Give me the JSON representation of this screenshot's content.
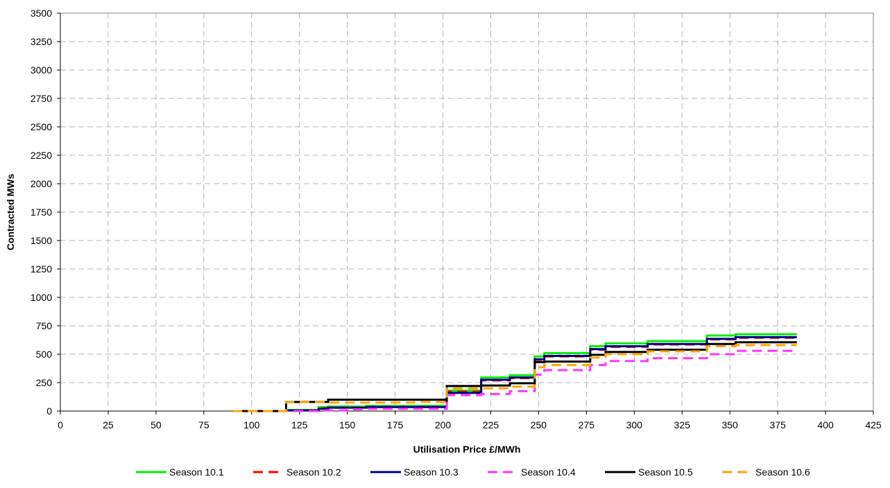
{
  "chart_data": {
    "type": "line",
    "title": "",
    "xlabel": "Utilisation Price £/MWh",
    "ylabel": "Contracted MWs",
    "xlim": [
      0,
      425
    ],
    "ylim": [
      0,
      3500
    ],
    "xticks": [
      0,
      25,
      50,
      75,
      100,
      125,
      150,
      175,
      200,
      225,
      250,
      275,
      300,
      325,
      350,
      375,
      400,
      425
    ],
    "yticks": [
      0,
      250,
      500,
      750,
      1000,
      1250,
      1500,
      1750,
      2000,
      2250,
      2500,
      2750,
      3000,
      3250,
      3500
    ],
    "grid": true,
    "legend_position": "bottom",
    "series": [
      {
        "name": "Season 10.1",
        "color": "#00ee00",
        "dash": "solid",
        "points": [
          [
            90,
            0
          ],
          [
            103,
            0
          ],
          [
            118,
            10
          ],
          [
            135,
            35
          ],
          [
            140,
            40
          ],
          [
            160,
            45
          ],
          [
            185,
            45
          ],
          [
            202,
            50
          ],
          [
            202,
            180
          ],
          [
            220,
            180
          ],
          [
            220,
            295
          ],
          [
            235,
            295
          ],
          [
            235,
            315
          ],
          [
            248,
            315
          ],
          [
            248,
            480
          ],
          [
            253,
            480
          ],
          [
            253,
            510
          ],
          [
            277,
            510
          ],
          [
            277,
            570
          ],
          [
            285,
            570
          ],
          [
            285,
            595
          ],
          [
            307,
            595
          ],
          [
            307,
            615
          ],
          [
            338,
            615
          ],
          [
            338,
            665
          ],
          [
            353,
            665
          ],
          [
            353,
            675
          ],
          [
            385,
            675
          ]
        ]
      },
      {
        "name": "Season 10.2",
        "color": "#ff0000",
        "dash": "dashed",
        "points": [
          [
            90,
            0
          ],
          [
            103,
            0
          ],
          [
            118,
            5
          ],
          [
            135,
            25
          ],
          [
            140,
            30
          ],
          [
            160,
            35
          ],
          [
            185,
            35
          ],
          [
            202,
            40
          ],
          [
            202,
            170
          ],
          [
            220,
            170
          ],
          [
            220,
            270
          ],
          [
            235,
            270
          ],
          [
            235,
            290
          ],
          [
            248,
            290
          ],
          [
            248,
            450
          ],
          [
            253,
            450
          ],
          [
            253,
            480
          ],
          [
            277,
            480
          ],
          [
            277,
            540
          ],
          [
            285,
            540
          ],
          [
            285,
            565
          ],
          [
            307,
            565
          ],
          [
            307,
            585
          ],
          [
            338,
            585
          ],
          [
            338,
            630
          ],
          [
            353,
            630
          ],
          [
            353,
            645
          ],
          [
            385,
            645
          ]
        ]
      },
      {
        "name": "Season 10.3",
        "color": "#000080",
        "dash": "solid",
        "points": [
          [
            90,
            0
          ],
          [
            103,
            0
          ],
          [
            118,
            5
          ],
          [
            135,
            20
          ],
          [
            140,
            30
          ],
          [
            160,
            35
          ],
          [
            185,
            35
          ],
          [
            202,
            40
          ],
          [
            202,
            160
          ],
          [
            220,
            160
          ],
          [
            220,
            275
          ],
          [
            235,
            275
          ],
          [
            235,
            295
          ],
          [
            248,
            295
          ],
          [
            248,
            455
          ],
          [
            253,
            455
          ],
          [
            253,
            485
          ],
          [
            277,
            485
          ],
          [
            277,
            545
          ],
          [
            285,
            545
          ],
          [
            285,
            570
          ],
          [
            307,
            570
          ],
          [
            307,
            590
          ],
          [
            338,
            590
          ],
          [
            338,
            635
          ],
          [
            353,
            635
          ],
          [
            353,
            650
          ],
          [
            385,
            650
          ]
        ]
      },
      {
        "name": "Season 10.4",
        "color": "#ff33ff",
        "dash": "dashed",
        "points": [
          [
            90,
            0
          ],
          [
            103,
            0
          ],
          [
            118,
            0
          ],
          [
            135,
            5
          ],
          [
            150,
            15
          ],
          [
            160,
            20
          ],
          [
            185,
            20
          ],
          [
            202,
            25
          ],
          [
            202,
            140
          ],
          [
            220,
            140
          ],
          [
            220,
            150
          ],
          [
            235,
            150
          ],
          [
            235,
            175
          ],
          [
            248,
            175
          ],
          [
            248,
            320
          ],
          [
            253,
            320
          ],
          [
            253,
            360
          ],
          [
            277,
            360
          ],
          [
            277,
            405
          ],
          [
            285,
            405
          ],
          [
            285,
            440
          ],
          [
            307,
            440
          ],
          [
            307,
            465
          ],
          [
            338,
            465
          ],
          [
            338,
            500
          ],
          [
            353,
            500
          ],
          [
            353,
            530
          ],
          [
            385,
            530
          ]
        ]
      },
      {
        "name": "Season 10.5",
        "color": "#000000",
        "dash": "solid",
        "points": [
          [
            90,
            0
          ],
          [
            103,
            0
          ],
          [
            118,
            80
          ],
          [
            135,
            80
          ],
          [
            140,
            100
          ],
          [
            160,
            100
          ],
          [
            185,
            100
          ],
          [
            202,
            100
          ],
          [
            202,
            220
          ],
          [
            220,
            220
          ],
          [
            220,
            225
          ],
          [
            235,
            225
          ],
          [
            235,
            245
          ],
          [
            248,
            245
          ],
          [
            248,
            430
          ],
          [
            253,
            430
          ],
          [
            253,
            435
          ],
          [
            277,
            435
          ],
          [
            277,
            495
          ],
          [
            285,
            495
          ],
          [
            285,
            520
          ],
          [
            307,
            520
          ],
          [
            307,
            540
          ],
          [
            338,
            540
          ],
          [
            338,
            590
          ],
          [
            353,
            590
          ],
          [
            353,
            605
          ],
          [
            385,
            605
          ]
        ]
      },
      {
        "name": "Season 10.6",
        "color": "#ffa500",
        "dash": "dashed",
        "points": [
          [
            90,
            0
          ],
          [
            103,
            0
          ],
          [
            118,
            80
          ],
          [
            135,
            80
          ],
          [
            140,
            75
          ],
          [
            160,
            75
          ],
          [
            185,
            80
          ],
          [
            202,
            80
          ],
          [
            202,
            200
          ],
          [
            220,
            200
          ],
          [
            220,
            200
          ],
          [
            235,
            200
          ],
          [
            235,
            215
          ],
          [
            248,
            215
          ],
          [
            248,
            385
          ],
          [
            253,
            385
          ],
          [
            253,
            405
          ],
          [
            277,
            405
          ],
          [
            277,
            470
          ],
          [
            285,
            470
          ],
          [
            285,
            500
          ],
          [
            307,
            500
          ],
          [
            307,
            525
          ],
          [
            338,
            525
          ],
          [
            338,
            570
          ],
          [
            353,
            570
          ],
          [
            353,
            580
          ],
          [
            385,
            580
          ]
        ]
      }
    ]
  }
}
